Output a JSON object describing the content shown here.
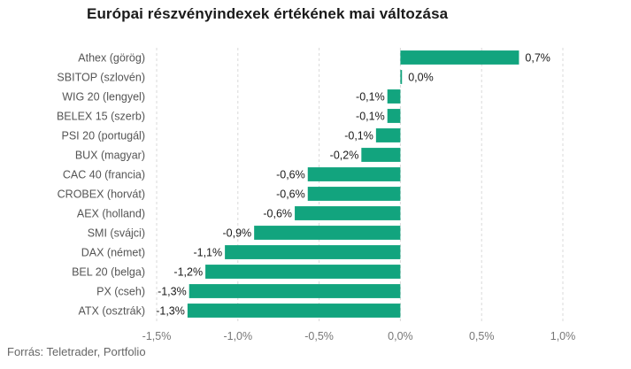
{
  "chart_data": {
    "type": "bar",
    "orientation": "horizontal",
    "title": "Európai részvényindexek értékének mai változása",
    "categories": [
      "Athex (görög)",
      "SBITOP (szlovén)",
      "WIG 20 (lengyel)",
      "BELEX 15 (szerb)",
      "PSI 20 (portugál)",
      "BUX (magyar)",
      "CAC 40 (francia)",
      "CROBEX (horvát)",
      "AEX (holland)",
      "SMI (svájci)",
      "DAX (német)",
      "BEL 20 (belga)",
      "PX (cseh)",
      "ATX (osztrák)"
    ],
    "values": [
      0.73,
      0.01,
      -0.08,
      -0.08,
      -0.15,
      -0.24,
      -0.57,
      -0.57,
      -0.65,
      -0.9,
      -1.08,
      -1.2,
      -1.3,
      -1.31
    ],
    "value_labels": [
      "0,7%",
      "0,0%",
      "-0,1%",
      "-0,1%",
      "-0,1%",
      "-0,2%",
      "-0,6%",
      "-0,6%",
      "-0,6%",
      "-0,9%",
      "-1,1%",
      "-1,2%",
      "-1,3%",
      "-1,3%"
    ],
    "xlim": [
      -1.5,
      1.0
    ],
    "xticks": [
      -1.5,
      -1.0,
      -0.5,
      0.0,
      0.5,
      1.0
    ],
    "xtick_labels": [
      "-1,5%",
      "-1,0%",
      "-0,5%",
      "0,0%",
      "0,5%",
      "1,0%"
    ],
    "grid": true,
    "bar_color": "#12a47e",
    "source": "Forrás: Teletrader, Portfolio"
  }
}
